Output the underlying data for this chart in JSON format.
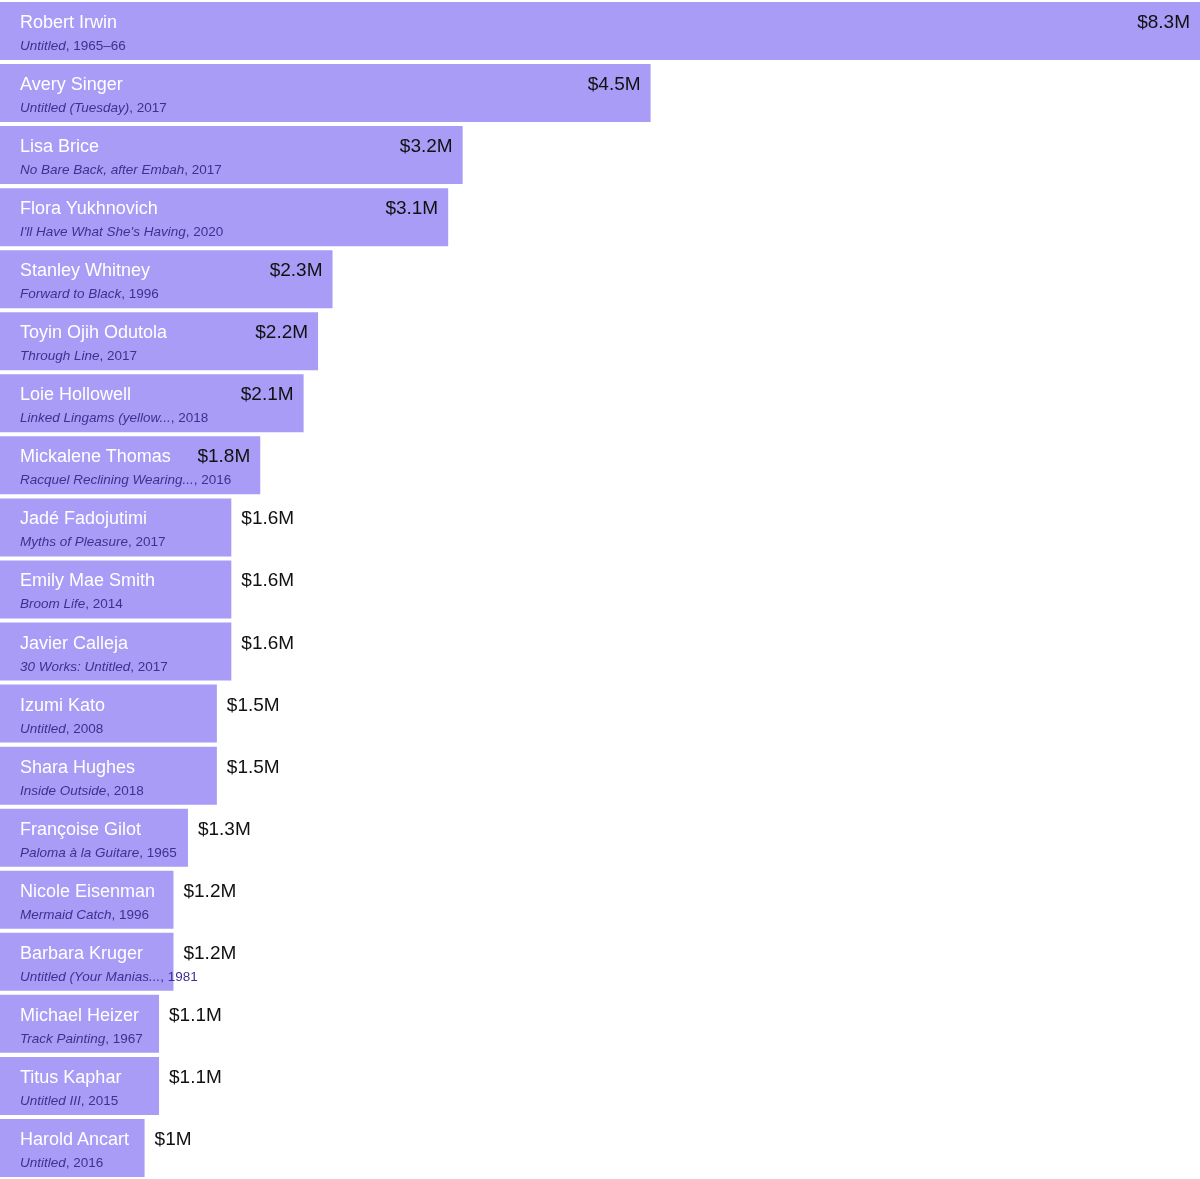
{
  "chart_data": {
    "type": "bar",
    "orientation": "horizontal",
    "color": "#a99cf6",
    "categories": [
      "Robert Irwin\nUntitled, 1965–66",
      "Avery Singer\nUntitled (Tuesday), 2017",
      "Lisa Brice\nNo Bare Back, after Embah, 2017",
      "Flora Yukhnovich\nI'll Have What She's Having, 2020",
      "Stanley Whitney\nForward to Black, 1996",
      "Toyin Ojih Odutola\nThrough Line, 2017",
      "Loie Hollowell\nLinked Lingams (yellow..., 2018",
      "Mickalene Thomas\nRacquel Reclining Wearing..., 2016",
      "Jadé Fadojutimi\nMyths of Pleasure, 2017",
      "Emily Mae Smith\nBroom Life, 2014",
      "Javier Calleja\n30 Works: Untitled, 2017",
      "Izumi Kato\nUntitled, 2008",
      "Shara Hughes\nInside Outside, 2018",
      "Françoise Gilot\nPaloma à la Guitare, 1965",
      "Nicole Eisenman\nMermaid Catch, 1996",
      "Barbara Kruger\nUntitled (Your Manias..., 1981",
      "Michael Heizer\nTrack Painting, 1967",
      "Titus Kaphar\nUntitled III, 2015",
      "Harold Ancart\nUntitled, 2016"
    ],
    "values": [
      8.3,
      4.5,
      3.2,
      3.1,
      2.3,
      2.2,
      2.1,
      1.8,
      1.6,
      1.6,
      1.6,
      1.5,
      1.5,
      1.3,
      1.2,
      1.2,
      1.1,
      1.1,
      1.0
    ],
    "value_labels": [
      "$8.3M",
      "$4.5M",
      "$3.2M",
      "$3.1M",
      "$2.3M",
      "$2.2M",
      "$2.1M",
      "$1.8M",
      "$1.6M",
      "$1.6M",
      "$1.6M",
      "$1.5M",
      "$1.5M",
      "$1.3M",
      "$1.2M",
      "$1.2M",
      "$1.1M",
      "$1.1M",
      "$1M"
    ]
  }
}
